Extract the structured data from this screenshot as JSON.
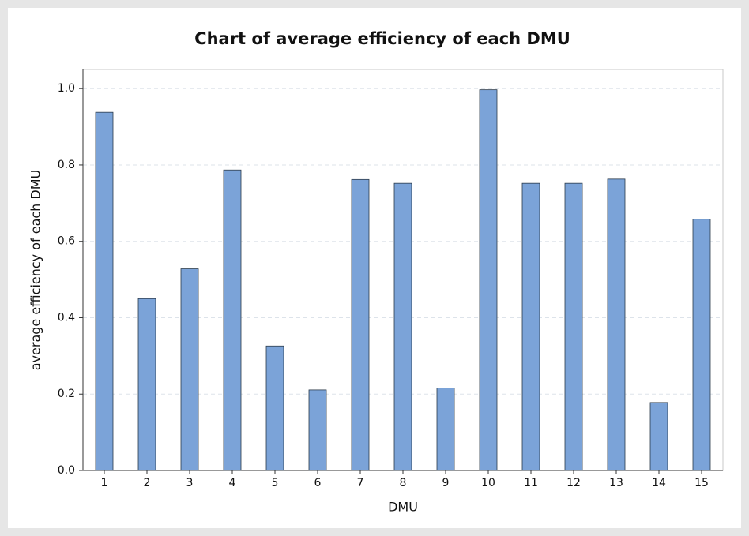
{
  "chart_data": {
    "type": "bar",
    "title": "Chart of average efficiency of each DMU",
    "x_label": "DMU",
    "y_label": "average efficiency of each DMU",
    "categories": [
      "1",
      "2",
      "3",
      "4",
      "5",
      "6",
      "7",
      "8",
      "9",
      "10",
      "11",
      "12",
      "13",
      "14",
      "15"
    ],
    "values": [
      0.938,
      0.45,
      0.528,
      0.787,
      0.326,
      0.211,
      0.762,
      0.752,
      0.216,
      0.997,
      0.752,
      0.752,
      0.763,
      0.178,
      0.658
    ],
    "color": "#7ba3d8",
    "ylim": [
      0,
      1.05
    ],
    "yticks": [
      {
        "value": 0,
        "label": "0.0"
      },
      0.2,
      0.4,
      0.6,
      0.8,
      {
        "value": 1,
        "label": "1.0"
      }
    ],
    "grid": true
  }
}
